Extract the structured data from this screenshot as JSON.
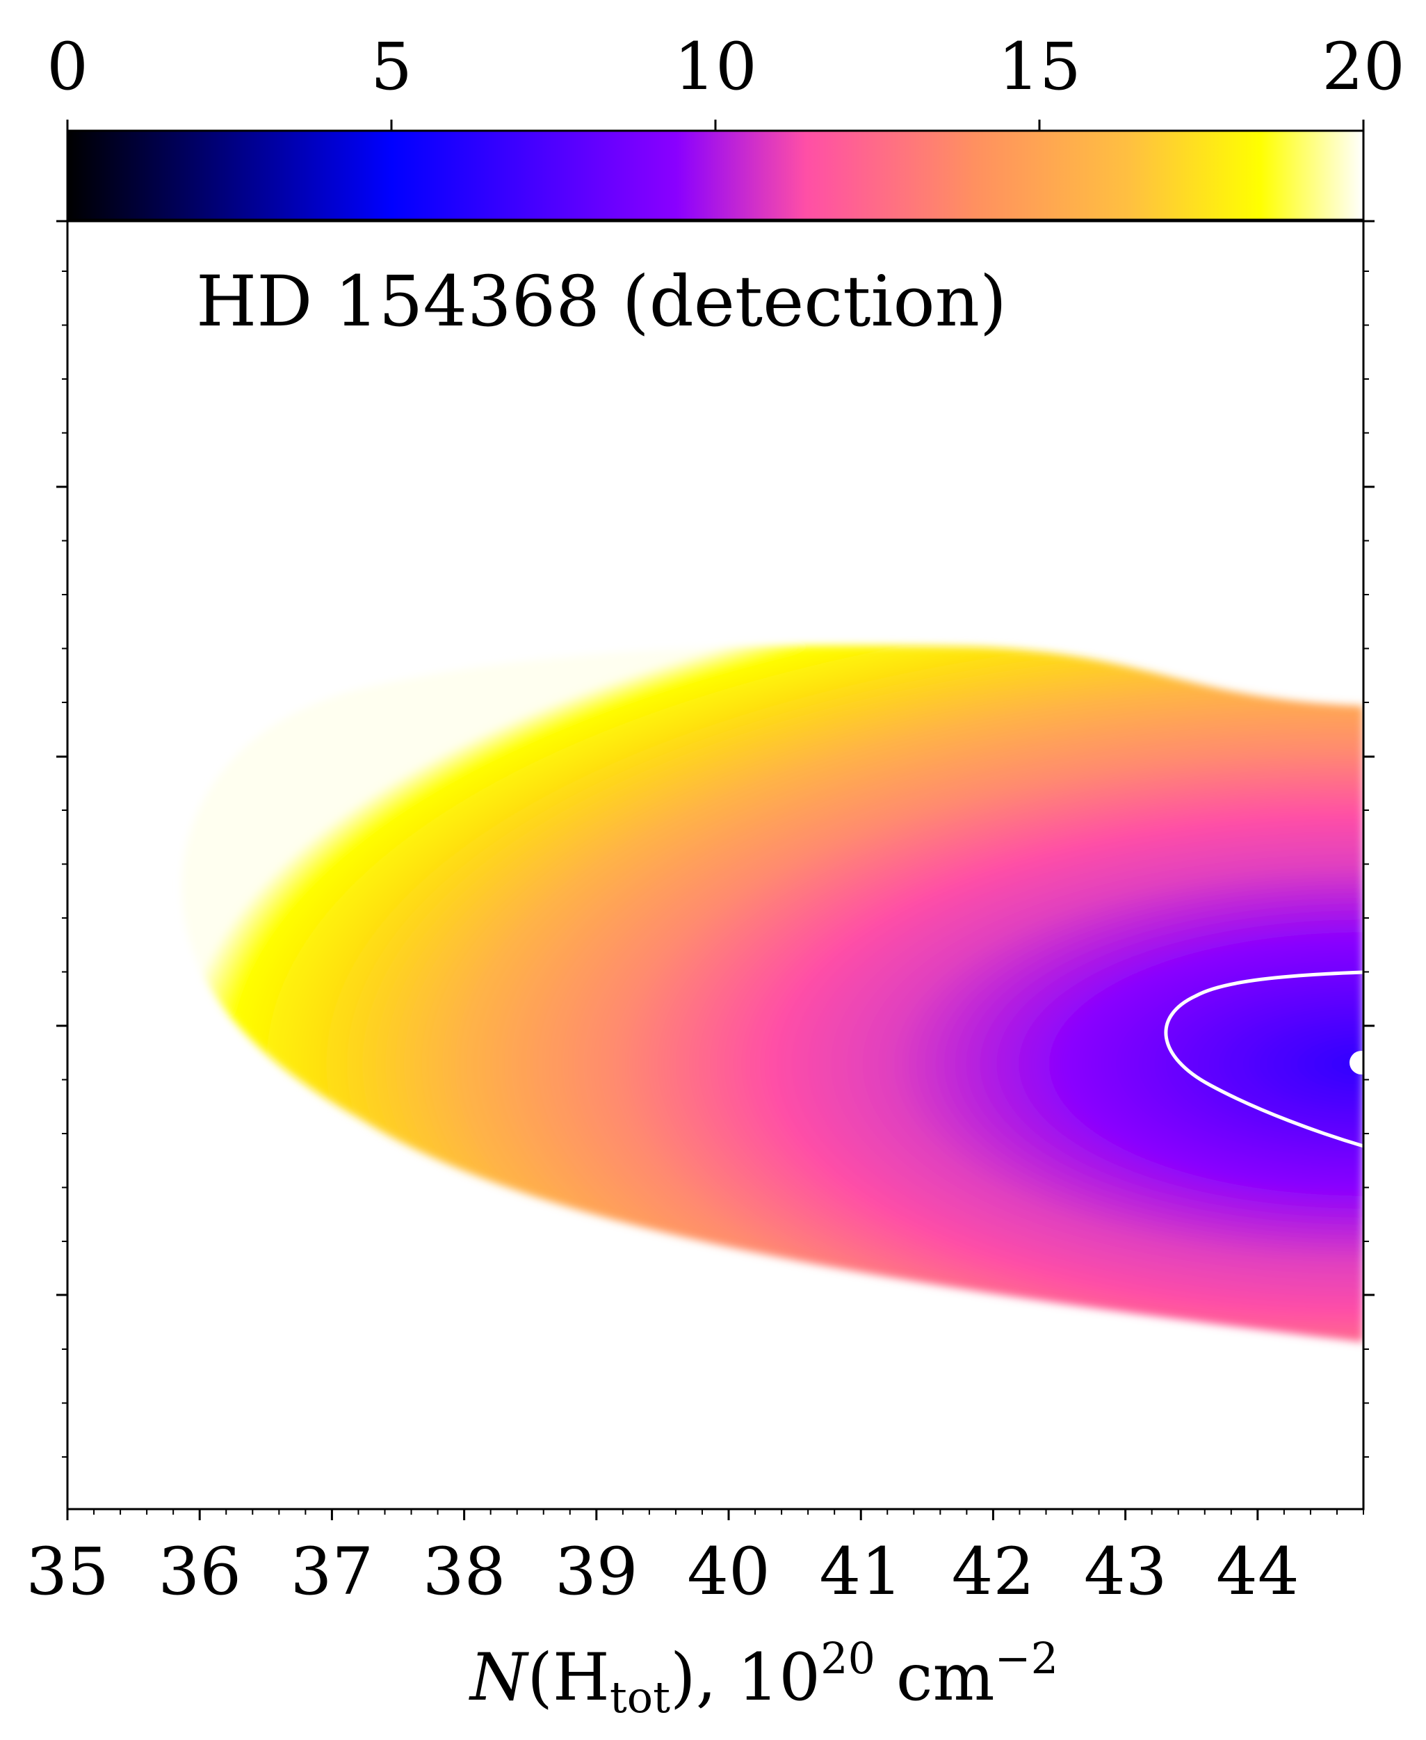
{
  "chart_data": {
    "type": "heatmap",
    "title": "",
    "annotation": "HD 154368 (detection)",
    "xlabel": {
      "var": "N",
      "paren_open": "(H",
      "sub": "tot",
      "rest": "), 10",
      "sup_exp": "20",
      "unit": " cm",
      "unit_exp": "−2"
    },
    "ylabel": "",
    "xlim": [
      35,
      44.8
    ],
    "x_ticks": [
      "35",
      "36",
      "37",
      "38",
      "39",
      "40",
      "41",
      "42",
      "43",
      "44"
    ],
    "x_tick_values": [
      35,
      36,
      37,
      38,
      39,
      40,
      41,
      42,
      43,
      44
    ],
    "y_tick_labels_shown": false,
    "colorbar": {
      "range": [
        0,
        20
      ],
      "ticks": [
        "0",
        "5",
        "10",
        "15",
        "20"
      ],
      "tick_values": [
        0,
        5,
        10,
        15,
        20
      ],
      "colormap": "gnuplot2",
      "location": "top",
      "stops": [
        "#000000",
        "#0000ff",
        "#8a00ff",
        "#ff4fa6",
        "#ffb347",
        "#ffff00",
        "#ffffff"
      ]
    },
    "heatmap": {
      "description_values": "chi-square surface; minimum ~6 near N = 44.8",
      "min_value": 6,
      "contour_color": "#ffffff",
      "best_fit_marker_color": "#ffffff"
    }
  }
}
